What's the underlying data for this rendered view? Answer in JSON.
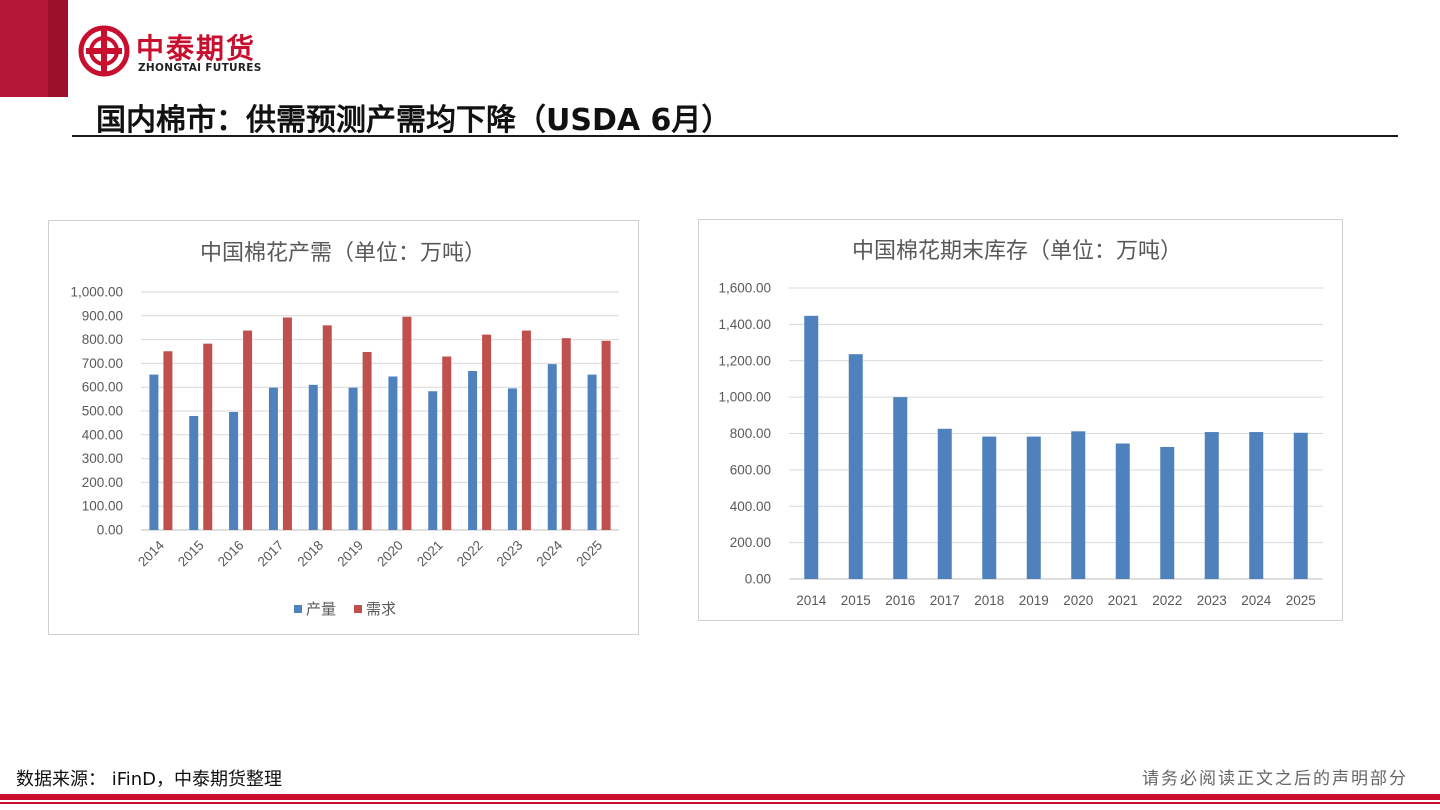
{
  "header": {
    "logo_cn": "中泰期货",
    "logo_en": "ZHONGTAI FUTURES",
    "title": "国内棉市：供需预测产需均下降（USDA 6月）"
  },
  "footer": {
    "source": "数据来源： iFinD，中泰期货整理",
    "disclaimer": "请务必阅读正文之后的声明部分"
  },
  "colors": {
    "brand_red": "#c8102e",
    "series_blue": "#4f81bd",
    "series_red": "#c0504d"
  },
  "chart_data": [
    {
      "type": "bar",
      "title": "中国棉花产需（单位：万吨）",
      "categories": [
        "2014",
        "2015",
        "2016",
        "2017",
        "2018",
        "2019",
        "2020",
        "2021",
        "2022",
        "2023",
        "2024",
        "2025"
      ],
      "series": [
        {
          "name": "产量",
          "color": "#4f81bd",
          "values": [
            653,
            479,
            496,
            598,
            610,
            598,
            645,
            583,
            668,
            595,
            697,
            653
          ]
        },
        {
          "name": "需求",
          "color": "#c0504d",
          "values": [
            751,
            783,
            838,
            893,
            860,
            748,
            896,
            729,
            821,
            838,
            806,
            795
          ]
        }
      ],
      "ylim": [
        0,
        1000
      ],
      "yticks": [
        "0.00",
        "100.00",
        "200.00",
        "300.00",
        "400.00",
        "500.00",
        "600.00",
        "700.00",
        "800.00",
        "900.00",
        "1,000.00"
      ],
      "xlabel": "",
      "ylabel": "",
      "grid": true,
      "legend": "bottom",
      "xtick_rotation": "rotated"
    },
    {
      "type": "bar",
      "title": "中国棉花期末库存（单位：万吨）",
      "categories": [
        "2014",
        "2015",
        "2016",
        "2017",
        "2018",
        "2019",
        "2020",
        "2021",
        "2022",
        "2023",
        "2024",
        "2025"
      ],
      "series": [
        {
          "color": "#4f81bd",
          "values": [
            1447,
            1236,
            1000,
            826,
            783,
            783,
            812,
            745,
            726,
            808,
            808,
            804
          ]
        }
      ],
      "ylim": [
        0,
        1600
      ],
      "yticks": [
        "0.00",
        "200.00",
        "400.00",
        "600.00",
        "800.00",
        "1,000.00",
        "1,200.00",
        "1,400.00",
        "1,600.00"
      ],
      "xlabel": "",
      "ylabel": "",
      "grid": true,
      "legend": "none"
    }
  ]
}
